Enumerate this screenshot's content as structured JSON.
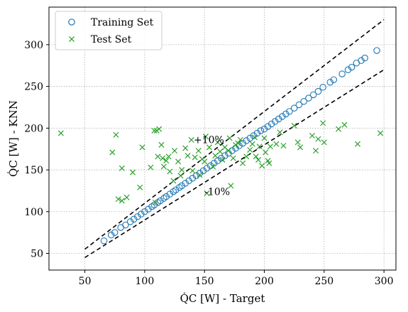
{
  "chart_data": {
    "type": "scatter",
    "xlabel": "Q̇C [W] - Target",
    "ylabel": "Q̇C [W] - KNN",
    "xlim": [
      20,
      310
    ],
    "ylim": [
      30,
      345
    ],
    "xticks": [
      50,
      100,
      150,
      200,
      250,
      300
    ],
    "yticks": [
      50,
      100,
      150,
      200,
      250,
      300
    ],
    "grid": true,
    "legend_position": "top-left",
    "colors": {
      "train": "#1f77b4",
      "test": "#2ca02c",
      "reference": "#000000"
    },
    "reference_lines": [
      {
        "label": "+10%",
        "slope": 1.1,
        "x_range": [
          50,
          300
        ]
      },
      {
        "label": "-10%",
        "slope": 0.9,
        "x_range": [
          50,
          300
        ]
      }
    ],
    "annotations": [
      {
        "text": "+10%",
        "x": 141,
        "y": 182
      },
      {
        "text": "-10%",
        "x": 150,
        "y": 120
      }
    ],
    "series": [
      {
        "name": "Training Set",
        "marker": "circle-open",
        "points": [
          [
            66,
            65
          ],
          [
            72,
            72
          ],
          [
            75,
            75
          ],
          [
            80,
            81
          ],
          [
            84,
            84
          ],
          [
            88,
            88
          ],
          [
            91,
            91
          ],
          [
            94,
            94
          ],
          [
            97,
            97
          ],
          [
            100,
            100
          ],
          [
            103,
            103
          ],
          [
            106,
            106
          ],
          [
            108,
            108
          ],
          [
            111,
            111
          ],
          [
            113,
            113
          ],
          [
            116,
            116
          ],
          [
            118,
            118
          ],
          [
            121,
            121
          ],
          [
            124,
            124
          ],
          [
            126,
            126
          ],
          [
            129,
            129
          ],
          [
            131,
            131
          ],
          [
            134,
            134
          ],
          [
            137,
            137
          ],
          [
            140,
            140
          ],
          [
            143,
            143
          ],
          [
            146,
            146
          ],
          [
            149,
            149
          ],
          [
            152,
            152
          ],
          [
            155,
            155
          ],
          [
            158,
            158
          ],
          [
            161,
            161
          ],
          [
            164,
            164
          ],
          [
            167,
            167
          ],
          [
            170,
            170
          ],
          [
            173,
            173
          ],
          [
            176,
            176
          ],
          [
            179,
            179
          ],
          [
            182,
            182
          ],
          [
            185,
            185
          ],
          [
            188,
            188
          ],
          [
            191,
            191
          ],
          [
            194,
            194
          ],
          [
            197,
            197
          ],
          [
            200,
            199
          ],
          [
            203,
            202
          ],
          [
            206,
            205
          ],
          [
            209,
            208
          ],
          [
            212,
            211
          ],
          [
            215,
            214
          ],
          [
            218,
            217
          ],
          [
            221,
            220
          ],
          [
            225,
            224
          ],
          [
            229,
            228
          ],
          [
            233,
            232
          ],
          [
            237,
            236
          ],
          [
            241,
            240
          ],
          [
            245,
            244
          ],
          [
            249,
            249
          ],
          [
            255,
            255
          ],
          [
            258,
            258
          ],
          [
            265,
            265
          ],
          [
            270,
            270
          ],
          [
            273,
            273
          ],
          [
            277,
            278
          ],
          [
            281,
            281
          ],
          [
            284,
            284
          ],
          [
            294,
            293
          ]
        ]
      },
      {
        "name": "Test Set",
        "marker": "x",
        "points": [
          [
            30,
            194
          ],
          [
            73,
            171
          ],
          [
            76,
            192
          ],
          [
            78,
            115
          ],
          [
            81,
            152
          ],
          [
            81,
            113
          ],
          [
            85,
            117
          ],
          [
            90,
            147
          ],
          [
            96,
            129
          ],
          [
            98,
            177
          ],
          [
            105,
            153
          ],
          [
            108,
            197
          ],
          [
            109,
            111
          ],
          [
            110,
            197
          ],
          [
            111,
            166
          ],
          [
            112,
            199
          ],
          [
            114,
            180
          ],
          [
            115,
            164
          ],
          [
            116,
            154
          ],
          [
            118,
            161
          ],
          [
            120,
            166
          ],
          [
            121,
            148
          ],
          [
            124,
            137
          ],
          [
            125,
            173
          ],
          [
            128,
            160
          ],
          [
            130,
            143
          ],
          [
            131,
            150
          ],
          [
            134,
            176
          ],
          [
            136,
            167
          ],
          [
            139,
            186
          ],
          [
            140,
            149
          ],
          [
            142,
            165
          ],
          [
            145,
            173
          ],
          [
            146,
            144
          ],
          [
            148,
            163
          ],
          [
            150,
            160
          ],
          [
            151,
            190
          ],
          [
            152,
            122
          ],
          [
            154,
            177
          ],
          [
            157,
            154
          ],
          [
            159,
            167
          ],
          [
            161,
            183
          ],
          [
            163,
            172
          ],
          [
            165,
            162
          ],
          [
            167,
            177
          ],
          [
            170,
            173
          ],
          [
            171,
            188
          ],
          [
            172,
            131
          ],
          [
            174,
            164
          ],
          [
            176,
            180
          ],
          [
            178,
            182
          ],
          [
            180,
            186
          ],
          [
            182,
            158
          ],
          [
            185,
            166
          ],
          [
            188,
            174
          ],
          [
            190,
            181
          ],
          [
            192,
            189
          ],
          [
            193,
            166
          ],
          [
            195,
            162
          ],
          [
            196,
            178
          ],
          [
            198,
            155
          ],
          [
            200,
            188
          ],
          [
            201,
            171
          ],
          [
            203,
            161
          ],
          [
            204,
            158
          ],
          [
            205,
            178
          ],
          [
            210,
            181
          ],
          [
            213,
            195
          ],
          [
            216,
            179
          ],
          [
            225,
            203
          ],
          [
            228,
            183
          ],
          [
            230,
            177
          ],
          [
            240,
            191
          ],
          [
            243,
            173
          ],
          [
            245,
            187
          ],
          [
            250,
            183
          ],
          [
            249,
            206
          ],
          [
            262,
            199
          ],
          [
            267,
            204
          ],
          [
            278,
            181
          ],
          [
            297,
            194
          ]
        ]
      }
    ]
  }
}
